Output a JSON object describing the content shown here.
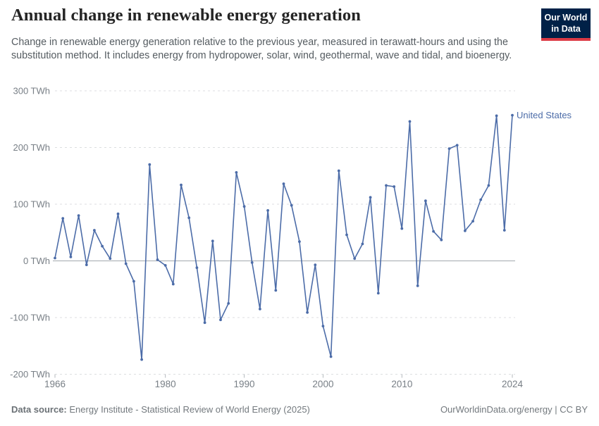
{
  "header": {
    "title": "Annual change in renewable energy generation",
    "subtitle": "Change in renewable energy generation relative to the previous year, measured in terawatt-hours and using the substitution method. It includes energy from hydropower, solar, wind, geothermal, wave and tidal, and bioenergy.",
    "logo": {
      "line1": "Our World",
      "line2": "in Data"
    }
  },
  "chart_data": {
    "type": "line",
    "title": "Annual change in renewable energy generation",
    "unit": "TWh",
    "x_start": 1966,
    "x_end": 2024,
    "xlabel": "",
    "ylabel": "",
    "ylim": [
      -200,
      300
    ],
    "grid": "horizontal-dashed",
    "zero_line": true,
    "legend_position": "end-of-line-label",
    "xticks": [
      1966,
      1980,
      1990,
      2000,
      2010,
      2024
    ],
    "yticks": [
      {
        "value": 300,
        "label": "300 TWh"
      },
      {
        "value": 200,
        "label": "200 TWh"
      },
      {
        "value": 100,
        "label": "100 TWh"
      },
      {
        "value": 0,
        "label": "0 TWh"
      },
      {
        "value": -100,
        "label": "-100 TWh"
      },
      {
        "value": -200,
        "label": "-200 TWh"
      }
    ],
    "series": [
      {
        "name": "United States",
        "values": [
          5,
          75,
          7,
          80,
          -7,
          54,
          26,
          4,
          83,
          -5,
          -36,
          -174,
          170,
          2,
          -8,
          -41,
          134,
          76,
          -12,
          -109,
          35,
          -104,
          -75,
          156,
          96,
          -3,
          -85,
          89,
          -52,
          136,
          98,
          34,
          -91,
          -7,
          -115,
          -169,
          159,
          46,
          4,
          30,
          112,
          -57,
          133,
          131,
          57,
          246,
          -44,
          106,
          52,
          37,
          198,
          204,
          53,
          70,
          108,
          133,
          256,
          54,
          257
        ]
      }
    ]
  },
  "footer": {
    "source_label": "Data source:",
    "source_text": " Energy Institute - Statistical Review of World Energy (2025)",
    "right": "OurWorldinData.org/energy | CC BY"
  },
  "colors": {
    "line": "#4C6CA8",
    "entity_label": "#4C6CA8",
    "grid": "#DCDEE0",
    "zero_line": "#A3A9AE",
    "axis_text": "#787F86",
    "logo_bg": "#002147",
    "logo_stripe": "#DC3A45"
  }
}
